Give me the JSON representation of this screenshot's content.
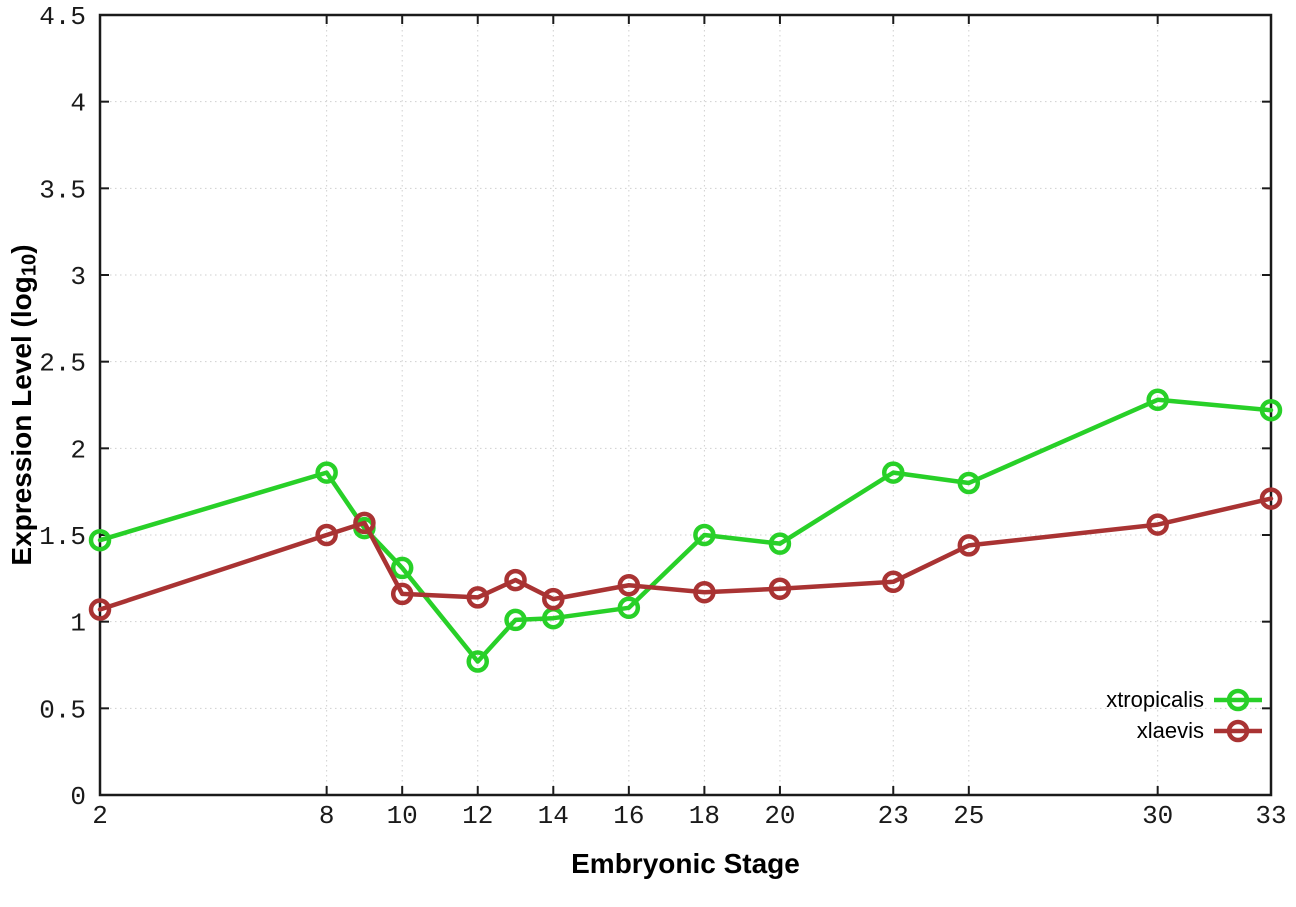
{
  "chart_data": {
    "type": "line",
    "title": "",
    "xlabel": "Embryonic Stage",
    "ylabel": "Expression Level (log10)",
    "ylabel_pre": "Expression Level (log",
    "ylabel_sub": "10",
    "ylabel_post": ")",
    "xlim": [
      2,
      33
    ],
    "ylim": [
      0,
      4.5
    ],
    "x_ticks": [
      2,
      8,
      10,
      12,
      14,
      16,
      18,
      20,
      23,
      25,
      30,
      33
    ],
    "y_ticks": [
      0,
      0.5,
      1,
      1.5,
      2,
      2.5,
      3,
      3.5,
      4,
      4.5
    ],
    "grid": true,
    "grid_style": "dotted",
    "legend_position": "bottom-right-inside",
    "marker": "open-circle",
    "axis_color": "#1a1a1a",
    "grid_color": "#cfcfcf",
    "series": [
      {
        "name": "xtropicalis",
        "color": "#28d028",
        "x": [
          2,
          8,
          9,
          10,
          12,
          13,
          14,
          16,
          18,
          20,
          23,
          25,
          30,
          33
        ],
        "y": [
          1.47,
          1.86,
          1.54,
          1.31,
          0.77,
          1.01,
          1.02,
          1.08,
          1.5,
          1.45,
          1.86,
          1.8,
          2.28,
          2.22
        ]
      },
      {
        "name": "xlaevis",
        "color": "#a93333",
        "x": [
          2,
          8,
          9,
          10,
          12,
          13,
          14,
          16,
          18,
          20,
          23,
          25,
          30,
          33
        ],
        "y": [
          1.07,
          1.5,
          1.57,
          1.16,
          1.14,
          1.24,
          1.13,
          1.21,
          1.17,
          1.19,
          1.23,
          1.44,
          1.56,
          1.71
        ]
      }
    ]
  }
}
